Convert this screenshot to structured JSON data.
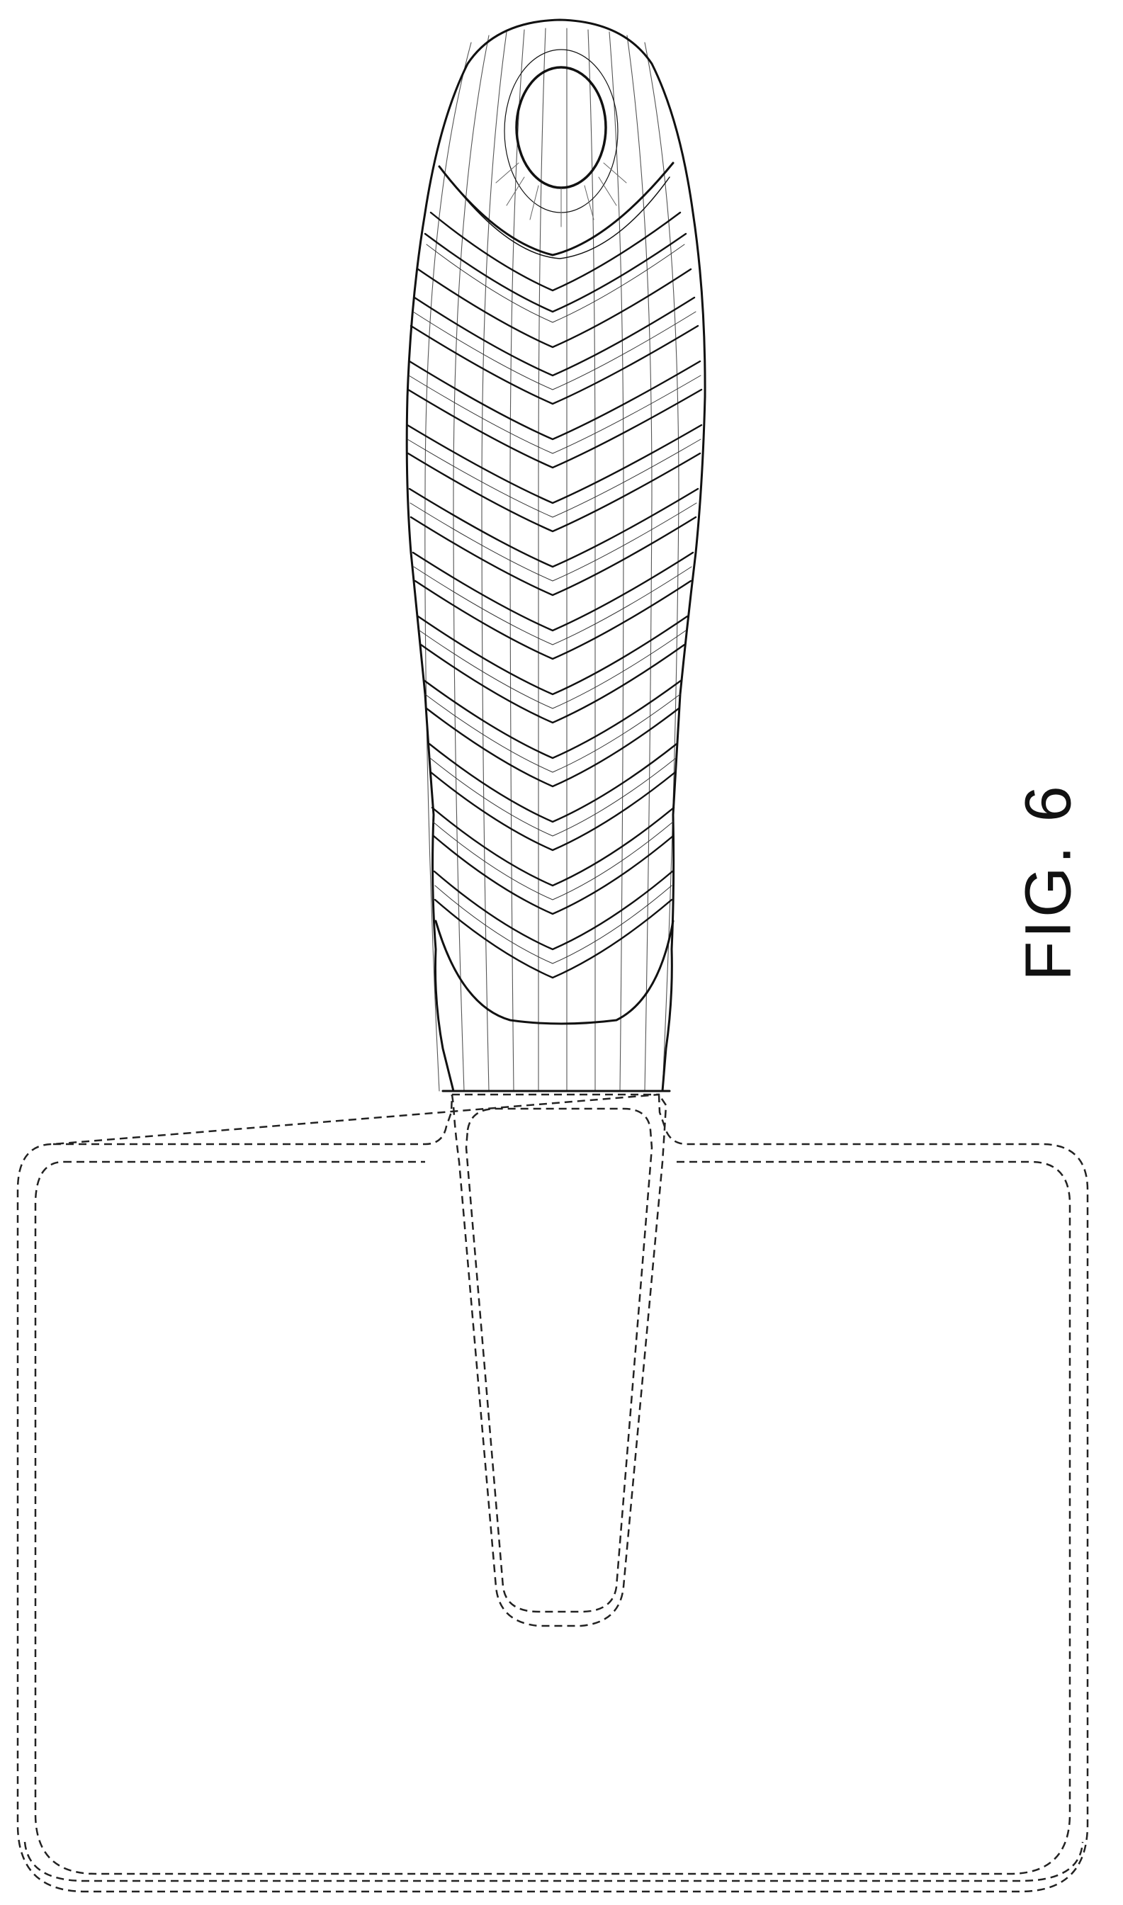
{
  "figure": {
    "label": "FIG. 6"
  },
  "colors": {
    "line": "#111111",
    "hatch": "#444444",
    "dashed": "#222222",
    "background": "#ffffff"
  }
}
